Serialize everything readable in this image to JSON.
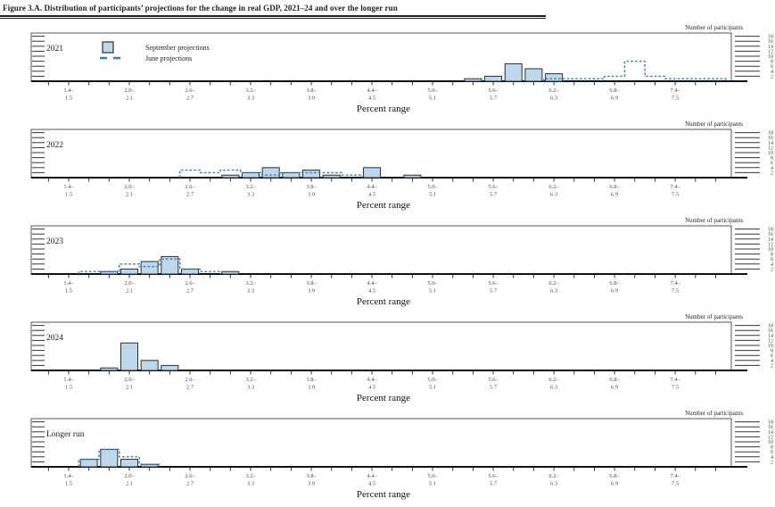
{
  "title": "Figure 3.A. Distribution of participants’ projections for the change in real GDP, 2021–24 and over the longer run",
  "figure": {
    "y_axis_label": "Number of participants",
    "x_axis_label": "Percent range",
    "y_ticks": [
      2,
      4,
      6,
      8,
      10,
      12,
      14,
      16,
      18
    ],
    "x_tick_labels": [
      [
        "1.4–",
        "1.5"
      ],
      [
        "2.0–",
        "2.1"
      ],
      [
        "2.6–",
        "2.7"
      ],
      [
        "3.2–",
        "3.3"
      ],
      [
        "3.8–",
        "3.9"
      ],
      [
        "4.4–",
        "4.5"
      ],
      [
        "5.0–",
        "5.1"
      ],
      [
        "5.6–",
        "5.7"
      ],
      [
        "6.2–",
        "6.3"
      ],
      [
        "6.8–",
        "6.9"
      ],
      [
        "7.4–",
        "7.5"
      ]
    ],
    "legend": [
      {
        "label": "September projections",
        "style": "bar"
      },
      {
        "label": "June projections",
        "style": "dashed"
      }
    ],
    "colors": {
      "bar_fill": "#bdd8ec",
      "bar_stroke": "#2d2d2d",
      "june_line": "#2e7ebc",
      "axis": "#111111",
      "frame": "#555555",
      "text": "#222222",
      "tick_text": "#4a4a4a"
    }
  },
  "chart_data": [
    {
      "panel": "2021",
      "type": "bar",
      "bin_width": 0.2,
      "september": [
        {
          "range": "5.4–5.5",
          "count": 1
        },
        {
          "range": "5.6–5.7",
          "count": 2
        },
        {
          "range": "5.8–5.9",
          "count": 7
        },
        {
          "range": "6.0–6.1",
          "count": 5
        },
        {
          "range": "6.2–6.3",
          "count": 3
        }
      ],
      "june": [
        {
          "range": "6.2–6.3",
          "count": 1
        },
        {
          "range": "6.4–6.5",
          "count": 1
        },
        {
          "range": "6.6–6.7",
          "count": 1
        },
        {
          "range": "6.8–6.9",
          "count": 2
        },
        {
          "range": "7.0–7.1",
          "count": 8
        },
        {
          "range": "7.2–7.3",
          "count": 2
        },
        {
          "range": "7.4–7.5",
          "count": 1
        },
        {
          "range": "7.6–7.7",
          "count": 1
        },
        {
          "range": "7.8–7.9",
          "count": 1
        }
      ]
    },
    {
      "panel": "2022",
      "type": "bar",
      "bin_width": 0.2,
      "september": [
        {
          "range": "3.0–3.1",
          "count": 1
        },
        {
          "range": "3.2–3.3",
          "count": 2
        },
        {
          "range": "3.4–3.5",
          "count": 4
        },
        {
          "range": "3.6–3.7",
          "count": 2
        },
        {
          "range": "3.8–3.9",
          "count": 3
        },
        {
          "range": "4.0–4.1",
          "count": 1
        },
        {
          "range": "4.4–4.5",
          "count": 4
        },
        {
          "range": "4.8–4.9",
          "count": 1
        }
      ],
      "june": [
        {
          "range": "2.6–2.7",
          "count": 3
        },
        {
          "range": "2.8–2.9",
          "count": 2
        },
        {
          "range": "3.0–3.1",
          "count": 3
        },
        {
          "range": "3.2–3.3",
          "count": 2
        },
        {
          "range": "3.4–3.5",
          "count": 1
        },
        {
          "range": "3.6–3.7",
          "count": 2
        },
        {
          "range": "3.8–3.9",
          "count": 2
        },
        {
          "range": "4.0–4.1",
          "count": 2
        },
        {
          "range": "4.2–4.3",
          "count": 1
        }
      ]
    },
    {
      "panel": "2023",
      "type": "bar",
      "bin_width": 0.2,
      "september": [
        {
          "range": "1.8–1.9",
          "count": 1
        },
        {
          "range": "2.0–2.1",
          "count": 2
        },
        {
          "range": "2.2–2.3",
          "count": 5
        },
        {
          "range": "2.4–2.5",
          "count": 7
        },
        {
          "range": "2.6–2.7",
          "count": 2
        },
        {
          "range": "3.0–3.1",
          "count": 1
        }
      ],
      "june": [
        {
          "range": "1.6–1.7",
          "count": 1
        },
        {
          "range": "1.8–1.9",
          "count": 1
        },
        {
          "range": "2.0–2.1",
          "count": 4
        },
        {
          "range": "2.2–2.3",
          "count": 3
        },
        {
          "range": "2.4–2.5",
          "count": 6
        },
        {
          "range": "2.6–2.7",
          "count": 2
        },
        {
          "range": "2.8–2.9",
          "count": 1
        }
      ]
    },
    {
      "panel": "2024",
      "type": "bar",
      "bin_width": 0.2,
      "september": [
        {
          "range": "1.8–1.9",
          "count": 1
        },
        {
          "range": "2.0–2.1",
          "count": 11
        },
        {
          "range": "2.2–2.3",
          "count": 4
        },
        {
          "range": "2.4–2.5",
          "count": 2
        }
      ],
      "june": []
    },
    {
      "panel": "Longer run",
      "type": "bar",
      "bin_width": 0.2,
      "september": [
        {
          "range": "1.6–1.7",
          "count": 3
        },
        {
          "range": "1.8–1.9",
          "count": 7
        },
        {
          "range": "2.0–2.1",
          "count": 3
        },
        {
          "range": "2.2–2.3",
          "count": 1
        }
      ],
      "june": [
        {
          "range": "1.6–1.7",
          "count": 3
        },
        {
          "range": "1.8–1.9",
          "count": 7
        },
        {
          "range": "2.0–2.1",
          "count": 4
        },
        {
          "range": "2.2–2.3",
          "count": 1
        }
      ]
    }
  ]
}
